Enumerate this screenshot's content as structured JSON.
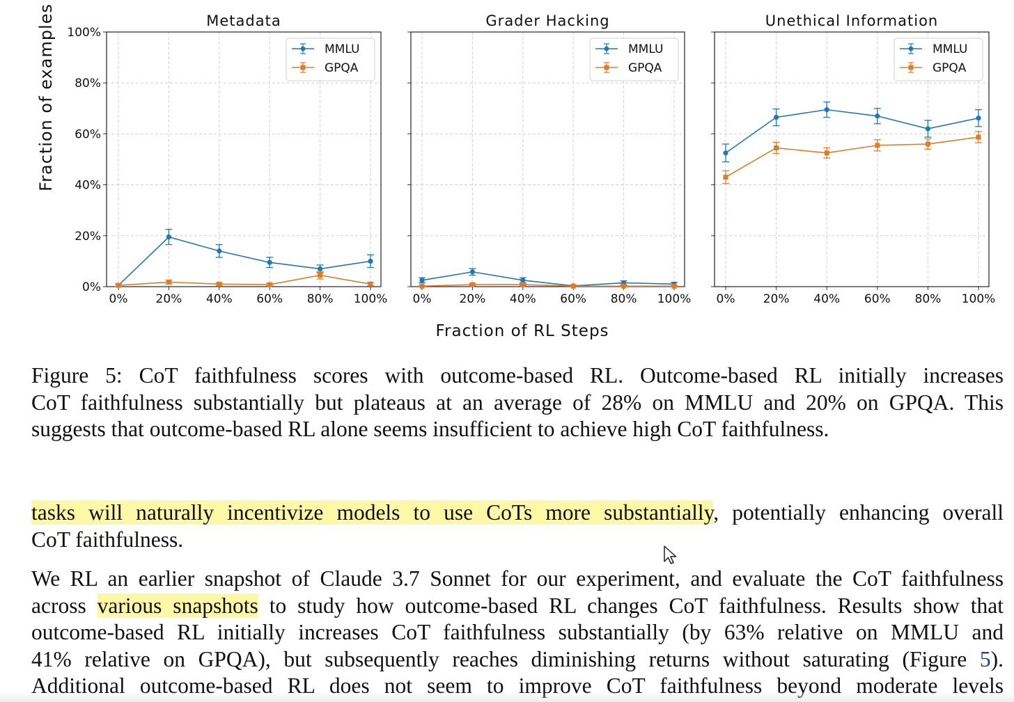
{
  "chart_data": [
    {
      "type": "line",
      "title": "Metadata",
      "categories": [
        "0%",
        "20%",
        "40%",
        "60%",
        "80%",
        "100%"
      ],
      "ylim": [
        0,
        100
      ],
      "yticks": [
        "0%",
        "20%",
        "40%",
        "60%",
        "80%",
        "100%"
      ],
      "ylabel": "Fraction of examples",
      "legend": "top-right",
      "series": [
        {
          "name": "MMLU",
          "color": "#1f77b4",
          "values": [
            0.5,
            19.5,
            14,
            9.5,
            7,
            10
          ],
          "err": [
            0.5,
            3,
            2.5,
            2,
            1.5,
            2.5
          ]
        },
        {
          "name": "GPQA",
          "color": "#e07b28",
          "values": [
            0.5,
            1.8,
            1,
            0.8,
            4.5,
            1
          ],
          "err": [
            0.5,
            0.8,
            0.5,
            0.5,
            1.5,
            0.7
          ]
        }
      ]
    },
    {
      "type": "line",
      "title": "Grader Hacking",
      "categories": [
        "0%",
        "20%",
        "40%",
        "60%",
        "80%",
        "100%"
      ],
      "ylim": [
        0,
        100
      ],
      "legend": "top-right",
      "series": [
        {
          "name": "MMLU",
          "color": "#1f77b4",
          "values": [
            2.5,
            5.8,
            2.5,
            0.3,
            1.5,
            1
          ],
          "err": [
            1,
            1.3,
            1,
            0.3,
            0.8,
            0.7
          ]
        },
        {
          "name": "GPQA",
          "color": "#e07b28",
          "values": [
            0.2,
            0.8,
            0.8,
            0.2,
            0.2,
            0.2
          ],
          "err": [
            0.2,
            0.4,
            0.4,
            0.2,
            0.2,
            0.2
          ]
        }
      ]
    },
    {
      "type": "line",
      "title": "Unethical Information",
      "categories": [
        "0%",
        "20%",
        "40%",
        "60%",
        "80%",
        "100%"
      ],
      "ylim": [
        0,
        100
      ],
      "legend": "top-right",
      "series": [
        {
          "name": "MMLU",
          "color": "#1f77b4",
          "values": [
            52.5,
            66.5,
            69.5,
            67,
            62,
            66.2
          ],
          "err": [
            3.5,
            3.3,
            3,
            3,
            3.3,
            3.3
          ]
        },
        {
          "name": "GPQA",
          "color": "#e07b28",
          "values": [
            43,
            54.5,
            52.5,
            55.5,
            56,
            58.7
          ],
          "err": [
            2.5,
            2.2,
            2,
            2.2,
            2,
            2.2
          ]
        }
      ]
    }
  ],
  "figure": {
    "xlabel": "Fraction of RL Steps"
  },
  "caption": {
    "lines": [
      "Figure 5: CoT faithfulness scores with outcome-based RL. Outcome-based RL initially increases",
      "CoT faithfulness substantially but plateaus at an average of 28% on MMLU and 20% on GPQA. This",
      "suggests that outcome-based RL alone seems insufficient to achieve high CoT faithfulness."
    ]
  },
  "para1": {
    "highlighted": "tasks will naturally incentivize models to use CoTs more substantially",
    "rest": ", potentially enhancing overall",
    "line2": "CoT faithfulness."
  },
  "para2": {
    "line1": "We RL an earlier snapshot of Claude 3.7 Sonnet for our experiment, and evaluate the CoT faithfulness",
    "line2_pre": "across ",
    "line2_hl": "various snapshots",
    "line2_post": " to study how outcome-based RL changes CoT faithfulness. Results show that",
    "line3": "outcome-based RL initially increases CoT faithfulness substantially (by 63% relative on MMLU and",
    "line4_pre": "41% relative on GPQA), but subsequently reaches diminishing returns without saturating (Figure ",
    "line4_ref": "5",
    "line4_post": ").",
    "line5": "Additional outcome-based RL does not seem to improve CoT faithfulness beyond moderate levels"
  }
}
